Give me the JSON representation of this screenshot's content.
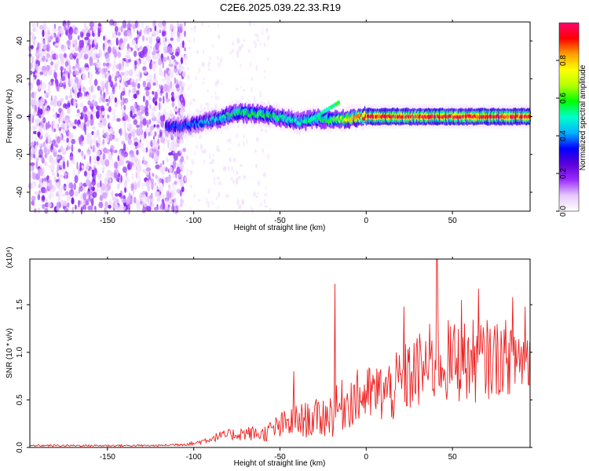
{
  "title": "C2E6.2025.039.22.33.R19",
  "chart_data": [
    {
      "type": "heatmap",
      "xlabel": "Height of straight line (km)",
      "ylabel": "Frequency (Hz)",
      "xlim": [
        -195,
        95
      ],
      "ylim": [
        -50,
        50
      ],
      "xticks": [
        -150,
        -100,
        -50,
        0,
        50
      ],
      "yticks": [
        -40,
        -20,
        0,
        20,
        40
      ],
      "colorbar": {
        "label": "Normalized spectral amplitude",
        "range": [
          0,
          1
        ],
        "ticks": [
          "0.0",
          "0.2",
          "0.4",
          "0.6",
          "0.8"
        ],
        "colors": [
          "#ffffff",
          "#e8c8ff",
          "#9a2cff",
          "#5a00d8",
          "#0000ff",
          "#00b4ff",
          "#00ffcc",
          "#00ff00",
          "#b4ff00",
          "#ffff00",
          "#ffa000",
          "#ff0000",
          "#ff0070"
        ]
      },
      "noise_region": {
        "x_from": -195,
        "x_to": -105,
        "level": 0.12
      },
      "ridge": [
        {
          "x": -115,
          "f": -5.5
        },
        {
          "x": -105,
          "f": -5
        },
        {
          "x": -95,
          "f": -3
        },
        {
          "x": -85,
          "f": -1
        },
        {
          "x": -75,
          "f": 2
        },
        {
          "x": -65,
          "f": 1.5
        },
        {
          "x": -55,
          "f": 0.5
        },
        {
          "x": -45,
          "f": -1.5
        },
        {
          "x": -38,
          "f": -3
        },
        {
          "x": -30,
          "f": -1
        },
        {
          "x": -20,
          "f": -2
        },
        {
          "x": -10,
          "f": -1
        },
        {
          "x": 0,
          "f": 0
        },
        {
          "x": 20,
          "f": 0
        },
        {
          "x": 40,
          "f": 0
        },
        {
          "x": 60,
          "f": 0
        },
        {
          "x": 80,
          "f": 0
        },
        {
          "x": 95,
          "f": 0
        }
      ],
      "ridge_peak_amplitude": [
        {
          "x": -115,
          "a": 0.35
        },
        {
          "x": -100,
          "a": 0.4
        },
        {
          "x": -80,
          "a": 0.55
        },
        {
          "x": -60,
          "a": 0.6
        },
        {
          "x": -40,
          "a": 0.5
        },
        {
          "x": -20,
          "a": 0.6
        },
        {
          "x": 0,
          "a": 0.95
        },
        {
          "x": 95,
          "a": 0.95
        }
      ]
    },
    {
      "type": "line",
      "xlabel": "Height of straight line (km)",
      "ylabel": "SNR (10 * v/v)",
      "y_multiplier": "(x10⁴)",
      "xlim": [
        -195,
        95
      ],
      "ylim": [
        0,
        1.98
      ],
      "xticks": [
        -150,
        -100,
        -50,
        0,
        50
      ],
      "yticks": [
        "0.0",
        "0.5",
        "1.0",
        "1.5"
      ],
      "series_color": "#ee2020",
      "envelope": [
        {
          "x": -195,
          "mean": 0.02,
          "spread": 0.01
        },
        {
          "x": -120,
          "mean": 0.02,
          "spread": 0.01
        },
        {
          "x": -100,
          "mean": 0.04,
          "spread": 0.02
        },
        {
          "x": -85,
          "mean": 0.12,
          "spread": 0.05
        },
        {
          "x": -70,
          "mean": 0.15,
          "spread": 0.08
        },
        {
          "x": -60,
          "mean": 0.14,
          "spread": 0.08
        },
        {
          "x": -50,
          "mean": 0.22,
          "spread": 0.15
        },
        {
          "x": -40,
          "mean": 0.28,
          "spread": 0.18
        },
        {
          "x": -30,
          "mean": 0.3,
          "spread": 0.2
        },
        {
          "x": -20,
          "mean": 0.35,
          "spread": 0.25
        },
        {
          "x": -10,
          "mean": 0.5,
          "spread": 0.3
        },
        {
          "x": 0,
          "mean": 0.55,
          "spread": 0.3
        },
        {
          "x": 15,
          "mean": 0.6,
          "spread": 0.35
        },
        {
          "x": 25,
          "mean": 0.75,
          "spread": 0.4
        },
        {
          "x": 40,
          "mean": 0.9,
          "spread": 0.45
        },
        {
          "x": 60,
          "mean": 0.9,
          "spread": 0.45
        },
        {
          "x": 80,
          "mean": 0.95,
          "spread": 0.4
        },
        {
          "x": 95,
          "mean": 0.95,
          "spread": 0.4
        }
      ],
      "spikes": [
        {
          "x": -42,
          "y": 0.8
        },
        {
          "x": -18,
          "y": 1.72
        },
        {
          "x": 22,
          "y": 1.48
        },
        {
          "x": 41,
          "y": 1.98
        },
        {
          "x": 55,
          "y": 1.55
        },
        {
          "x": 65,
          "y": 1.67
        },
        {
          "x": 85,
          "y": 1.58
        },
        {
          "x": 92,
          "y": 1.48
        }
      ]
    }
  ]
}
